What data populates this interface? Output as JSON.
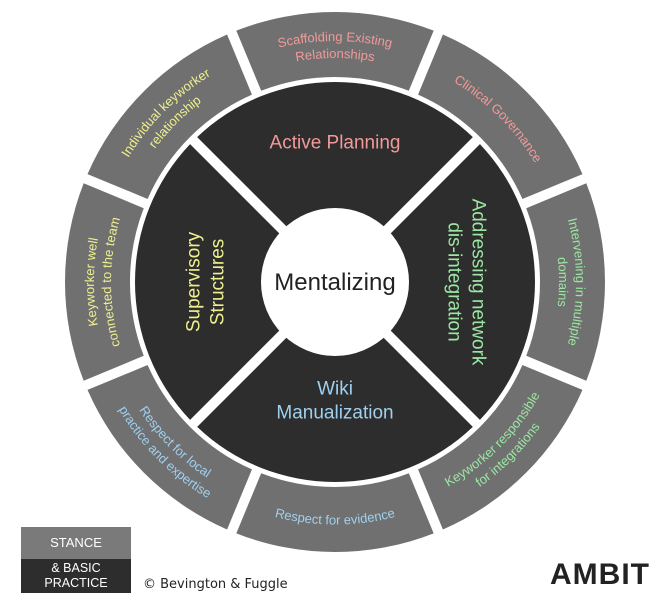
{
  "center": "Mentalizing",
  "inner_segments": [
    {
      "id": "top",
      "lines": [
        "Active Planning"
      ],
      "color": "#f29a9a"
    },
    {
      "id": "right",
      "lines": [
        "Addressing network",
        "dis-integration"
      ],
      "color": "#9be6a2"
    },
    {
      "id": "bottom",
      "lines": [
        "Wiki",
        "Manualization"
      ],
      "color": "#9fd0f0"
    },
    {
      "id": "left",
      "lines": [
        "Supervisory",
        "Structures"
      ],
      "color": "#eef08f"
    }
  ],
  "outer_segments": [
    {
      "id": "scaffolding",
      "lines": [
        "Scaffolding Existing",
        "Relationships"
      ],
      "color": "#f29a9a"
    },
    {
      "id": "clinical-governance",
      "lines": [
        "Clinical Governance"
      ],
      "color": "#f29a9a"
    },
    {
      "id": "intervening",
      "lines": [
        "Intervening in multiple",
        "domains"
      ],
      "color": "#9be6a2"
    },
    {
      "id": "keyworker-integrations",
      "lines": [
        "Keyworker responsible",
        "for integrations"
      ],
      "color": "#9be6a2"
    },
    {
      "id": "evidence",
      "lines": [
        "Respect for evidence"
      ],
      "color": "#9fd0f0"
    },
    {
      "id": "local-practice",
      "lines": [
        "Respect for local",
        "practice and expertise"
      ],
      "color": "#9fd0f0"
    },
    {
      "id": "keyworker-team",
      "lines": [
        "Keyworker well",
        "connected to the team"
      ],
      "color": "#eef08f"
    },
    {
      "id": "individual-keyworker",
      "lines": [
        "Individual keyworker",
        "relationship"
      ],
      "color": "#eef08f"
    }
  ],
  "legend": {
    "top": "STANCE",
    "bottom_line1": "& BASIC",
    "bottom_line2": "PRACTICE"
  },
  "credit": "© Bevington & Fuggle",
  "brand": "AMBIT",
  "colors": {
    "inner_fill": "#2d2d2d",
    "outer_fill": "#707070",
    "center_fill": "#ffffff"
  }
}
